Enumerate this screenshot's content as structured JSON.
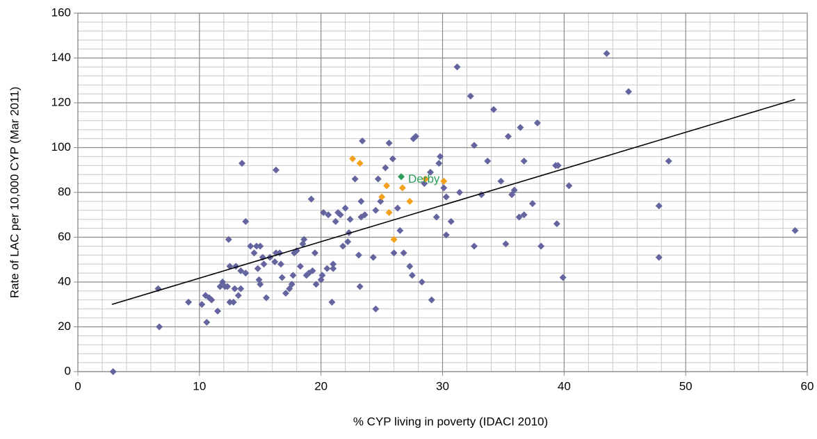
{
  "chart_data": {
    "type": "scatter",
    "xlabel": "% CYP living in poverty  (IDACI 2010)",
    "ylabel": "Rate of LAC per 10,000 CYP (Mar 2011)",
    "xlim": [
      0,
      60
    ],
    "ylim": [
      0,
      160
    ],
    "xticks": [
      0,
      10,
      20,
      30,
      40,
      50,
      60
    ],
    "yticks": [
      0,
      20,
      40,
      60,
      80,
      100,
      120,
      140,
      160
    ],
    "x_minor_ticks": [
      2,
      4,
      6,
      8,
      12,
      14,
      16,
      18,
      22,
      24,
      26,
      28,
      32,
      34,
      36,
      38,
      42,
      44,
      46,
      48,
      52,
      54,
      56,
      58
    ],
    "y_minor_ticks": [
      4,
      8,
      12,
      16,
      24,
      28,
      32,
      36,
      44,
      48,
      52,
      56,
      64,
      68,
      72,
      76,
      84,
      88,
      92,
      96,
      104,
      108,
      112,
      116,
      124,
      128,
      132,
      136,
      144,
      148,
      152,
      156
    ],
    "grid": true,
    "series": [
      {
        "color": "#64649f",
        "x": [
          2.9,
          6.6,
          6.7,
          9.1,
          10.2,
          10.5,
          10.6,
          10.8,
          11,
          11.5,
          11.7,
          11.9,
          12.1,
          12.3,
          12.4,
          12.5,
          12.5,
          12.8,
          12.9,
          13,
          13.2,
          13.4,
          13.4,
          13.5,
          13.8,
          13.8,
          14.2,
          14.5,
          14.7,
          14.8,
          14.9,
          15,
          15,
          15.2,
          15.3,
          15.5,
          15.8,
          16.2,
          16.3,
          16.3,
          16.6,
          16.7,
          16.8,
          17.1,
          17.4,
          17.6,
          17.7,
          17.8,
          18,
          18.3,
          18.5,
          18.6,
          18.8,
          19,
          19.2,
          19.3,
          19.5,
          19.6,
          20,
          20.1,
          20.2,
          20.5,
          20.6,
          20.9,
          21,
          21,
          21.2,
          21.4,
          21.6,
          21.8,
          22,
          22.2,
          22.3,
          22.4,
          22.8,
          23.1,
          23.2,
          23.3,
          23.3,
          23.4,
          23.6,
          24.3,
          24.5,
          24.5,
          24.7,
          24.9,
          25.3,
          25.6,
          25.9,
          26,
          26.3,
          26.5,
          26.8,
          27.3,
          27.5,
          27.6,
          27.8,
          28.3,
          28.5,
          29,
          29.1,
          29.5,
          29.7,
          29.8,
          30.1,
          30.3,
          30.3,
          30.7,
          31.2,
          31.4,
          32.3,
          32.6,
          32.6,
          33.2,
          33.7,
          34.2,
          34.8,
          35.2,
          35.4,
          35.7,
          35.9,
          36.3,
          36.4,
          36.7,
          36.7,
          37.4,
          37.8,
          38.1,
          39.3,
          39.4,
          39.5,
          39.9,
          40.4,
          43.5,
          45.3,
          47.8,
          47.8,
          48.6,
          59
        ],
        "values": [
          0,
          37,
          20,
          31,
          30,
          34,
          22,
          33,
          32,
          27,
          38,
          40,
          38,
          38,
          59,
          47,
          31,
          31,
          37,
          47,
          34,
          45,
          37,
          93,
          67,
          44,
          56,
          53,
          56,
          46,
          41,
          39,
          56,
          51,
          48,
          33,
          51,
          49,
          53,
          90,
          53,
          48,
          42,
          35,
          37,
          39,
          43,
          53,
          54,
          47,
          57,
          59,
          43,
          44,
          77,
          45,
          53,
          39,
          41,
          43,
          71,
          46,
          70,
          31,
          48,
          46,
          67,
          71,
          70,
          56,
          73,
          58,
          62,
          68,
          86,
          52,
          38,
          69,
          76,
          103,
          70,
          51,
          28,
          72,
          86,
          76,
          91,
          102,
          95,
          53,
          73,
          63,
          53,
          47,
          43,
          104,
          105,
          40,
          84,
          89,
          32,
          69,
          93,
          96,
          82,
          61,
          78,
          67,
          136,
          80,
          123,
          56,
          101,
          79,
          94,
          117,
          85,
          57,
          105,
          79,
          81,
          69,
          109,
          70,
          94,
          75,
          111,
          56,
          92,
          66,
          92,
          42,
          83,
          142,
          125,
          74,
          51,
          94,
          63
        ]
      },
      {
        "color": "#f5a01a",
        "x": [
          22.6,
          23.2,
          25,
          25.4,
          25.6,
          26,
          26.7,
          27.3,
          30.1,
          28.6
        ],
        "values": [
          95,
          93,
          78,
          83,
          71,
          59,
          82,
          76,
          85,
          86
        ]
      },
      {
        "name": "Derby",
        "color": "#2e9e5a",
        "x": [
          26.6
        ],
        "values": [
          87
        ]
      }
    ],
    "trendline": {
      "color": "#000000",
      "x": [
        2.8,
        59
      ],
      "values": [
        30,
        121.5
      ]
    }
  }
}
